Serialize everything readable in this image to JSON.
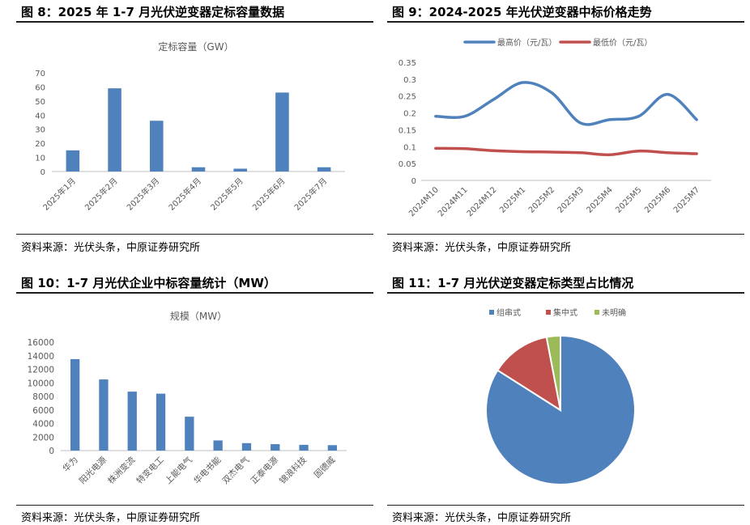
{
  "charts": [
    {
      "figure_title": "图 8：2025 年 1-7 月光伏逆变器定标容量数据",
      "source": "资料来源：光伏头条，中原证券研究所",
      "chart_data": {
        "type": "bar",
        "title": "定标容量（GW）",
        "categories": [
          "2025年1月",
          "2025年2月",
          "2025年3月",
          "2025年4月",
          "2025年5月",
          "2025年6月",
          "2025年7月"
        ],
        "values": [
          15,
          59,
          36,
          3,
          2,
          56,
          3
        ],
        "ylim": [
          0,
          70
        ],
        "yticks": [
          0,
          10,
          20,
          30,
          40,
          50,
          60,
          70
        ],
        "ytick_labels": [
          "0",
          "10",
          "20",
          "30",
          "40",
          "50",
          "60",
          "70"
        ],
        "xlabel": "",
        "ylabel": "",
        "grid": false,
        "color": "#4f81bd"
      }
    },
    {
      "figure_title": "图 9：2024-2025 年光伏逆变器中标价格走势",
      "source": "资料来源：光伏头条，中原证券研究所",
      "chart_data": {
        "type": "line",
        "x": [
          "2024M10",
          "2024M11",
          "2024M12",
          "2025M1",
          "2025M2",
          "2025M3",
          "2025M4",
          "2025M5",
          "2025M6",
          "2025M7"
        ],
        "series": [
          {
            "name": "最高价（元/瓦）",
            "values": [
              0.19,
              0.19,
              0.24,
              0.29,
              0.26,
              0.17,
              0.18,
              0.19,
              0.255,
              0.18
            ],
            "color": "#4f81bd"
          },
          {
            "name": "最低价（元/瓦）",
            "values": [
              0.095,
              0.094,
              0.088,
              0.085,
              0.084,
              0.082,
              0.076,
              0.087,
              0.082,
              0.079
            ],
            "color": "#c0504d"
          }
        ],
        "ylim": [
          0,
          0.35
        ],
        "yticks": [
          0,
          0.05,
          0.1,
          0.15,
          0.2,
          0.25,
          0.3,
          0.35
        ],
        "ytick_labels": [
          "0",
          "0.05",
          "0.1",
          "0.15",
          "0.2",
          "0.25",
          "0.3",
          "0.35"
        ],
        "legend": "top",
        "grid": false,
        "title": "",
        "xlabel": "",
        "ylabel": ""
      }
    },
    {
      "figure_title": "图 10：1-7 月光伏企业中标容量统计（MW）",
      "source": "资料来源：光伏头条，中原证券研究所",
      "chart_data": {
        "type": "bar",
        "title": "规模（MW）",
        "categories": [
          "华为",
          "阳光电源",
          "株洲变流",
          "特变电工",
          "上能电气",
          "华电书能",
          "双杰电气",
          "正泰电源",
          "锦浪科技",
          "固德威"
        ],
        "values": [
          13500,
          10500,
          8700,
          8400,
          5000,
          1500,
          1100,
          950,
          850,
          800
        ],
        "ylim": [
          0,
          16000
        ],
        "yticks": [
          0,
          2000,
          4000,
          6000,
          8000,
          10000,
          12000,
          14000,
          16000
        ],
        "ytick_labels": [
          "0",
          "2000",
          "4000",
          "6000",
          "8000",
          "10000",
          "12000",
          "14000",
          "16000"
        ],
        "xlabel": "",
        "ylabel": "",
        "grid": false,
        "color": "#4f81bd"
      }
    },
    {
      "figure_title": "图 11：1-7 月光伏逆变器定标类型占比情况",
      "source": "资料来源：光伏头条，中原证券研究所",
      "chart_data": {
        "type": "pie",
        "labels": [
          "组串式",
          "集中式",
          "未明确"
        ],
        "values": [
          84,
          13,
          3
        ],
        "colors": [
          "#4f81bd",
          "#c0504d",
          "#9bbb59"
        ],
        "legend": "top",
        "title": ""
      }
    }
  ]
}
